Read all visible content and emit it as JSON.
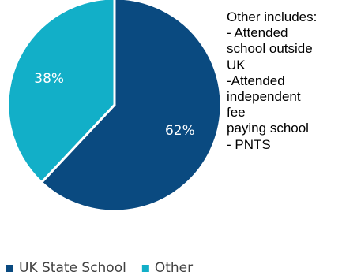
{
  "chart_data": {
    "type": "pie",
    "categories": [
      "UK State School",
      "Other"
    ],
    "values": [
      62,
      38
    ],
    "data_labels": [
      "62%",
      "38%"
    ],
    "colors": [
      "#0a4a80",
      "#12afc8"
    ],
    "legend": {
      "placement": "bottom-left",
      "entries": [
        "UK State School",
        "Other"
      ]
    },
    "title": ""
  },
  "annotation": {
    "lines": [
      "Other includes:",
      "- Attended",
      "school outside",
      "UK",
      "-Attended",
      "independent",
      "fee",
      "paying school",
      "- PNTS"
    ]
  }
}
